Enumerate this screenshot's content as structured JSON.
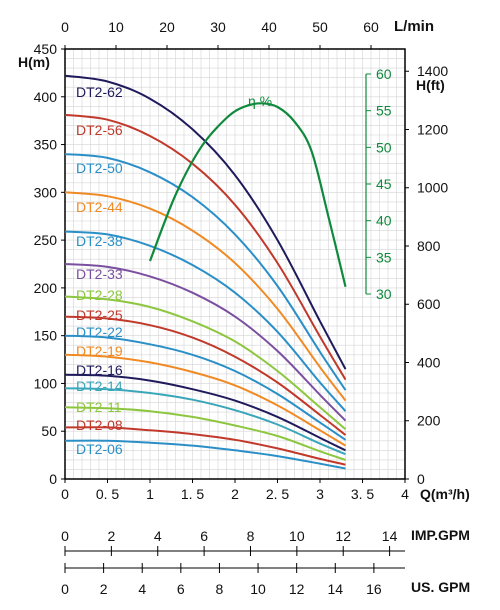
{
  "chart_data": {
    "type": "line",
    "axes": {
      "top_unit": "L/min",
      "top_ticks": [
        "0",
        "10",
        "20",
        "30",
        "40",
        "50",
        "60"
      ],
      "left_unit": "H(m)",
      "left_ticks": [
        "0",
        "50",
        "100",
        "150",
        "200",
        "250",
        "300",
        "350",
        "400",
        "450"
      ],
      "right_unit": "H(ft)",
      "right_ticks": [
        "0",
        "200",
        "400",
        "600",
        "800",
        "1000",
        "1200",
        "1400"
      ],
      "bottom_unit": "Q(m³/h)",
      "bottom_ticks": [
        "0",
        "0. 5",
        "1",
        "1. 5",
        "2",
        "2. 5",
        "3",
        "3. 5",
        "4"
      ],
      "eff_ticks": [
        "30",
        "35",
        "40",
        "45",
        "50",
        "55",
        "60"
      ],
      "imp_unit": "IMP.GPM",
      "imp_ticks": [
        "0",
        "2",
        "4",
        "6",
        "8",
        "10",
        "12",
        "14"
      ],
      "us_unit": "US. GPM",
      "us_ticks": [
        "0",
        "2",
        "4",
        "6",
        "8",
        "10",
        "12",
        "14",
        "16"
      ],
      "xlim": [
        0,
        4
      ],
      "ylim": [
        0,
        450
      ],
      "eff_lim": [
        30,
        60
      ],
      "grid": true
    },
    "series": [
      {
        "name": "DT2-62",
        "color": "#1f1a5c",
        "x": [
          0,
          0.5,
          1,
          1.5,
          2,
          2.5,
          3,
          3.3
        ],
        "y": [
          422,
          416,
          398,
          366,
          318,
          250,
          165,
          115
        ]
      },
      {
        "name": "DT2-56",
        "color": "#c0392b",
        "x": [
          0,
          0.5,
          1,
          1.5,
          2,
          2.5,
          3,
          3.3
        ],
        "y": [
          381,
          376,
          359,
          330,
          287,
          226,
          149,
          104
        ]
      },
      {
        "name": "DT2-50",
        "color": "#2a8fc7",
        "x": [
          0,
          0.5,
          1,
          1.5,
          2,
          2.5,
          3,
          3.3
        ],
        "y": [
          340,
          336,
          321,
          295,
          256,
          202,
          133,
          93
        ]
      },
      {
        "name": "DT2-44",
        "color": "#f08a24",
        "x": [
          0,
          0.5,
          1,
          1.5,
          2,
          2.5,
          3,
          3.3
        ],
        "y": [
          300,
          296,
          283,
          260,
          226,
          178,
          117,
          82
        ]
      },
      {
        "name": "DT2-38",
        "color": "#2a8fc7",
        "x": [
          0,
          0.5,
          1,
          1.5,
          2,
          2.5,
          3,
          3.3
        ],
        "y": [
          259,
          256,
          244,
          224,
          195,
          154,
          101,
          71
        ]
      },
      {
        "name": "DT2-33",
        "color": "#7b4fa0",
        "x": [
          0,
          0.5,
          1,
          1.5,
          2,
          2.5,
          3,
          3.3
        ],
        "y": [
          225,
          222,
          212,
          195,
          170,
          134,
          88,
          61
        ]
      },
      {
        "name": "DT2-28",
        "color": "#8dc63f",
        "x": [
          0,
          0.5,
          1,
          1.5,
          2,
          2.5,
          3,
          3.3
        ],
        "y": [
          191,
          188,
          180,
          165,
          144,
          113,
          75,
          52
        ]
      },
      {
        "name": "DT2-25",
        "color": "#c0392b",
        "x": [
          0,
          0.5,
          1,
          1.5,
          2,
          2.5,
          3,
          3.3
        ],
        "y": [
          170,
          168,
          161,
          148,
          128,
          101,
          67,
          46
        ]
      },
      {
        "name": "DT2-22",
        "color": "#2a8fc7",
        "x": [
          0,
          0.5,
          1,
          1.5,
          2,
          2.5,
          3,
          3.3
        ],
        "y": [
          150,
          148,
          141,
          130,
          113,
          89,
          59,
          41
        ]
      },
      {
        "name": "DT2-19",
        "color": "#f08a24",
        "x": [
          0,
          0.5,
          1,
          1.5,
          2,
          2.5,
          3,
          3.3
        ],
        "y": [
          130,
          128,
          122,
          112,
          98,
          77,
          51,
          35
        ]
      },
      {
        "name": "DT2-16",
        "color": "#1f1a5c",
        "x": [
          0,
          0.5,
          1,
          1.5,
          2,
          2.5,
          3,
          3.3
        ],
        "y": [
          109,
          108,
          103,
          94,
          82,
          65,
          43,
          30
        ]
      },
      {
        "name": "DT2-14",
        "color": "#3aa6b9",
        "x": [
          0,
          0.5,
          1,
          1.5,
          2,
          2.5,
          3,
          3.3
        ],
        "y": [
          95,
          94,
          90,
          83,
          72,
          57,
          37,
          26
        ]
      },
      {
        "name": "DT2-11",
        "color": "#8dc63f",
        "x": [
          0,
          0.5,
          1,
          1.5,
          2,
          2.5,
          3,
          3.3
        ],
        "y": [
          75,
          74,
          71,
          65,
          56,
          45,
          29,
          20
        ]
      },
      {
        "name": "DT2-08",
        "color": "#c0392b",
        "x": [
          0,
          0.5,
          1,
          1.5,
          2,
          2.5,
          3,
          3.3
        ],
        "y": [
          54,
          54,
          51,
          47,
          41,
          32,
          21,
          15
        ]
      },
      {
        "name": "DT2-06",
        "color": "#2a8fc7",
        "x": [
          0,
          0.5,
          1,
          1.5,
          2,
          2.5,
          3,
          3.3
        ],
        "y": [
          40,
          40,
          38,
          35,
          30,
          24,
          16,
          11
        ]
      }
    ],
    "efficiency": {
      "label": "η %",
      "color": "#0f8a3c",
      "x": [
        1.0,
        1.3,
        1.6,
        1.9,
        2.1,
        2.3,
        2.5,
        2.7,
        2.9,
        3.1,
        3.3
      ],
      "y": [
        34.5,
        43.5,
        50,
        54,
        55.5,
        56,
        55.5,
        53.5,
        49.5,
        40.5,
        31
      ]
    }
  }
}
